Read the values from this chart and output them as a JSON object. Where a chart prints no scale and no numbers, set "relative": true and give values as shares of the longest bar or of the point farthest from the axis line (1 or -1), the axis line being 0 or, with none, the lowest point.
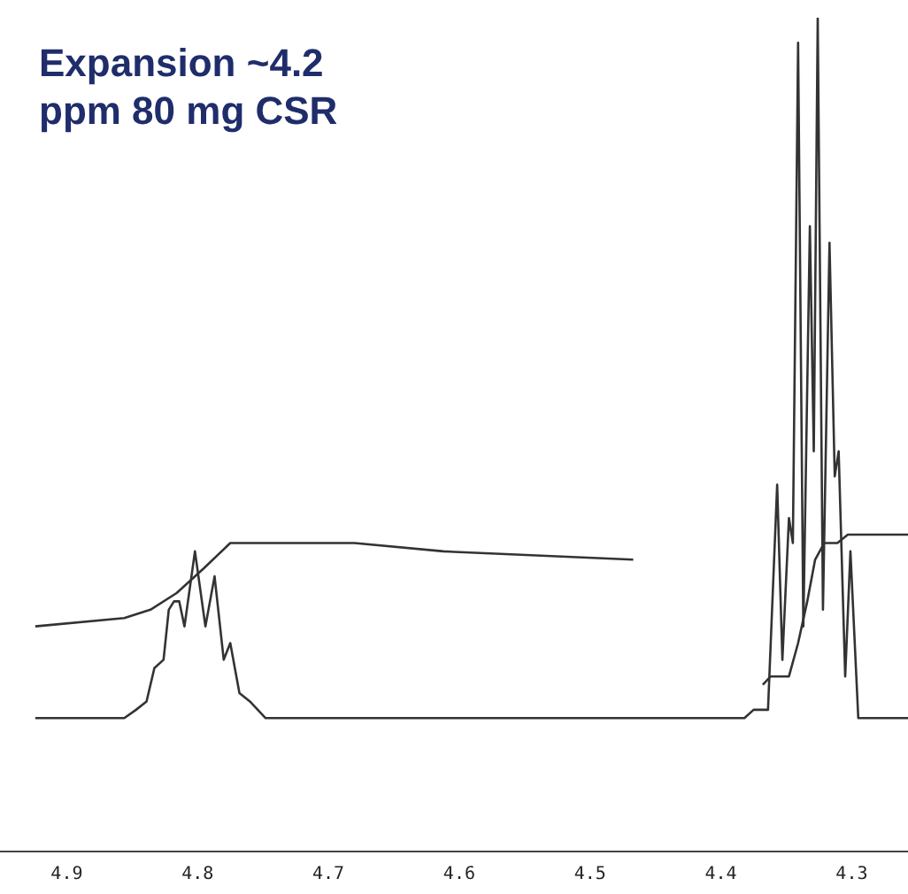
{
  "chart_data": {
    "type": "line",
    "title": "Expansion ~4.2 ppm 80 mg CSR",
    "relative": true,
    "xlim": [
      4.951,
      4.257
    ],
    "xticks": [
      4.9,
      4.8,
      4.7,
      4.6,
      4.5,
      4.4,
      4.3
    ],
    "grid": false,
    "legend": false,
    "marker": "none",
    "line_style": "solid",
    "tick_labels": "x",
    "series": [
      {
        "color": "#333333",
        "x": [
          4.924,
          4.87,
          4.856,
          4.847,
          4.839,
          4.833,
          4.826,
          4.822,
          4.818,
          4.814,
          4.81,
          4.802,
          4.794,
          4.787,
          4.78,
          4.775,
          4.768,
          4.76,
          4.748,
          4.727,
          4.6,
          4.504,
          4.486,
          4.467,
          4.382,
          4.375,
          4.364,
          4.364,
          4.357,
          4.353,
          4.348,
          4.345,
          4.341,
          4.337,
          4.332,
          4.329,
          4.326,
          4.322,
          4.317,
          4.313,
          4.31,
          4.305,
          4.301,
          4.295,
          4.273,
          4.257
        ],
        "values": [
          0.16,
          0.16,
          0.16,
          0.17,
          0.18,
          0.22,
          0.23,
          0.29,
          0.3,
          0.3,
          0.27,
          0.36,
          0.27,
          0.33,
          0.23,
          0.25,
          0.19,
          0.18,
          0.16,
          0.16,
          0.16,
          0.16,
          0.16,
          0.16,
          0.16,
          0.17,
          0.17,
          0.17,
          0.44,
          0.23,
          0.4,
          0.37,
          0.97,
          0.27,
          0.75,
          0.48,
          1,
          0.29,
          0.73,
          0.45,
          0.48,
          0.21,
          0.36,
          0.16,
          0.16,
          0.16
        ]
      },
      {
        "color": "#333333",
        "x": [
          4.924,
          4.856,
          4.836,
          4.816,
          4.795,
          4.775,
          4.761,
          4.734,
          4.68,
          4.612,
          4.467,
          4.466,
          4.368,
          4.362,
          4.348,
          4.341,
          4.334,
          4.328,
          4.321,
          4.311,
          4.303,
          4.287,
          4.257
        ],
        "values": [
          0.27,
          0.28,
          0.29,
          0.31,
          0.34,
          0.37,
          0.37,
          0.37,
          0.37,
          0.36,
          0.35,
          null,
          0.2,
          0.21,
          0.21,
          0.25,
          0.3,
          0.35,
          0.37,
          0.37,
          0.38,
          0.38,
          0.38
        ]
      }
    ]
  }
}
